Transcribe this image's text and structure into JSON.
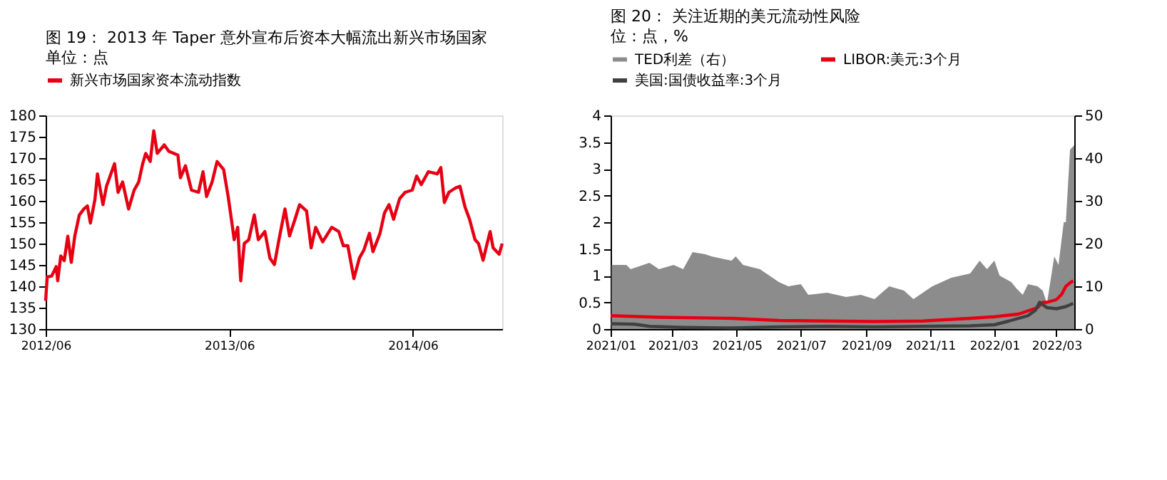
{
  "chart_data": [
    {
      "type": "line",
      "title": "图 19：  2013 年 Taper 意外宣布后资本大幅流出新兴市场国家",
      "subtitle": "单位：点",
      "legend": "top",
      "grid": false,
      "xlim": [
        "2012-06-01",
        "2014-11-26"
      ],
      "xticks": [
        {
          "value": "2012-06-01",
          "label": "2012/06"
        },
        {
          "value": "2013-06-01",
          "label": "2013/06"
        },
        {
          "value": "2014-06-01",
          "label": "2014/06"
        }
      ],
      "ylim": [
        130,
        180
      ],
      "yticks": [
        130,
        135,
        140,
        145,
        150,
        155,
        160,
        165,
        170,
        175,
        180
      ],
      "x": [
        "2012-06-01",
        "2012-06-04",
        "2012-06-13",
        "2012-06-22",
        "2012-06-25",
        "2012-07-01",
        "2012-07-08",
        "2012-07-15",
        "2012-07-22",
        "2012-07-29",
        "2012-08-07",
        "2012-08-16",
        "2012-08-23",
        "2012-08-29",
        "2012-09-07",
        "2012-09-12",
        "2012-09-23",
        "2012-09-30",
        "2012-10-16",
        "2012-10-23",
        "2012-11-01",
        "2012-11-13",
        "2012-11-24",
        "2012-12-03",
        "2012-12-11",
        "2012-12-17",
        "2012-12-26",
        "2013-01-02",
        "2013-01-09",
        "2013-01-23",
        "2013-02-01",
        "2013-02-19",
        "2013-02-24",
        "2013-03-06",
        "2013-03-18",
        "2013-04-01",
        "2013-04-10",
        "2013-04-17",
        "2013-04-28",
        "2013-05-08",
        "2013-05-21",
        "2013-05-30",
        "2013-06-06",
        "2013-06-11",
        "2013-06-18",
        "2013-06-24",
        "2013-07-01",
        "2013-07-10",
        "2013-07-21",
        "2013-07-29",
        "2013-08-11",
        "2013-08-21",
        "2013-08-30",
        "2013-09-08",
        "2013-09-20",
        "2013-09-29",
        "2013-10-10",
        "2013-10-19",
        "2013-11-02",
        "2013-11-11",
        "2013-11-20",
        "2013-12-04",
        "2013-12-22",
        "2014-01-05",
        "2014-01-14",
        "2014-01-23",
        "2014-02-04",
        "2014-02-15",
        "2014-02-24",
        "2014-03-07",
        "2014-03-14",
        "2014-03-28",
        "2014-04-06",
        "2014-04-15",
        "2014-04-24",
        "2014-05-06",
        "2014-05-17",
        "2014-05-31",
        "2014-06-09",
        "2014-06-18",
        "2014-07-02",
        "2014-07-20",
        "2014-07-27",
        "2014-08-03",
        "2014-08-12",
        "2014-08-25",
        "2014-09-03",
        "2014-09-13",
        "2014-09-22",
        "2014-10-03",
        "2014-10-10",
        "2014-10-19",
        "2014-10-26",
        "2014-11-02",
        "2014-11-08",
        "2014-11-20",
        "2014-11-26"
      ],
      "series": [
        {
          "name": "新兴市场国家资本流动指数",
          "color": "#e60012",
          "values": [
            136.6,
            142.2,
            142.4,
            144.6,
            141.3,
            147.1,
            146,
            151.7,
            145.6,
            151.8,
            156.7,
            158.1,
            158.8,
            154.8,
            160.3,
            166.3,
            159.1,
            163.4,
            168.7,
            162,
            164.4,
            158.1,
            162.5,
            164.4,
            168.7,
            171.1,
            169.2,
            176.4,
            171.1,
            173.1,
            171.6,
            170.7,
            165.4,
            168.2,
            162.5,
            162,
            166.8,
            161,
            164.4,
            169.2,
            167.3,
            161,
            155.2,
            150.9,
            153.8,
            141.3,
            150,
            150.9,
            156.7,
            150.9,
            152.8,
            146.6,
            145.1,
            150.9,
            158.1,
            151.8,
            155.7,
            159.1,
            157.6,
            149,
            153.8,
            150.4,
            153.8,
            152.8,
            149.5,
            149.5,
            141.8,
            146.6,
            148.5,
            152.4,
            148.1,
            152.4,
            157.2,
            159.1,
            155.7,
            160.5,
            162,
            162.5,
            165.8,
            163.8,
            166.8,
            166.3,
            167.8,
            159.6,
            162,
            163,
            163.4,
            158.6,
            155.7,
            150.9,
            150,
            146.1,
            149.5,
            152.8,
            149,
            147.5,
            150
          ]
        }
      ]
    },
    {
      "type": "line",
      "title": "图 20：  关注近期的美元流动性风险",
      "subtitle": "位：点，%",
      "legend": "top",
      "grid": false,
      "xlim": [
        "2021-01-01",
        "2022-03-18"
      ],
      "xticks": [
        {
          "value": "2021-01-01",
          "label": "2021/01"
        },
        {
          "value": "2021-03-01",
          "label": "2021/03"
        },
        {
          "value": "2021-05-01",
          "label": "2021/05"
        },
        {
          "value": "2021-07-01",
          "label": "2021/07"
        },
        {
          "value": "2021-09-01",
          "label": "2021/09"
        },
        {
          "value": "2021-11-01",
          "label": "2021/11"
        },
        {
          "value": "2022-01-01",
          "label": "2022/01"
        },
        {
          "value": "2022-03-01",
          "label": "2022/03"
        }
      ],
      "ylim": [
        0,
        4
      ],
      "yticks": [
        0,
        0.5,
        1,
        1.5,
        2,
        2.5,
        3,
        3.5,
        4
      ],
      "y2lim": [
        0,
        50
      ],
      "y2ticks": [
        0,
        10,
        20,
        30,
        40,
        50
      ],
      "series": [
        {
          "name": "TED利差（右）",
          "type": "area",
          "axis": "y2",
          "color": "#8c8c8c",
          "x": [
            "2021-01-02",
            "2021-01-16",
            "2021-01-20",
            "2021-02-07",
            "2021-02-16",
            "2021-03-02",
            "2021-03-11",
            "2021-03-20",
            "2021-04-01",
            "2021-04-07",
            "2021-04-26",
            "2021-04-30",
            "2021-05-07",
            "2021-05-23",
            "2021-06-10",
            "2021-06-19",
            "2021-07-01",
            "2021-07-08",
            "2021-07-26",
            "2021-08-13",
            "2021-08-27",
            "2021-09-09",
            "2021-09-23",
            "2021-10-07",
            "2021-10-16",
            "2021-11-03",
            "2021-11-21",
            "2021-12-09",
            "2021-12-18",
            "2021-12-25",
            "2022-01-01",
            "2022-01-06",
            "2022-01-17",
            "2022-01-22",
            "2022-01-28",
            "2022-02-02",
            "2022-02-11",
            "2022-02-16",
            "2022-02-20",
            "2022-02-27",
            "2022-03-03",
            "2022-03-08",
            "2022-03-10",
            "2022-03-14",
            "2022-03-18"
          ],
          "values": [
            15,
            15,
            14,
            15.5,
            14,
            15,
            14,
            18,
            17.5,
            17,
            16,
            17,
            15,
            14,
            11,
            10,
            10.5,
            8,
            8.5,
            7.5,
            8,
            7,
            10,
            9,
            7,
            10,
            12,
            13,
            16,
            14,
            16,
            12.5,
            11,
            9.5,
            8,
            10.5,
            10,
            9,
            6,
            17,
            15,
            25,
            25,
            42,
            43
          ]
        },
        {
          "name": "LIBOR:美元:3个月",
          "type": "line",
          "color": "#e60012",
          "x": [
            "2021-01-01",
            "2021-02-16",
            "2021-04-26",
            "2021-06-10",
            "2021-07-26",
            "2021-09-09",
            "2021-10-25",
            "2021-12-09",
            "2022-01-01",
            "2022-01-24",
            "2022-02-11",
            "2022-02-16",
            "2022-02-20",
            "2022-03-01",
            "2022-03-06",
            "2022-03-10",
            "2022-03-15",
            "2022-03-17"
          ],
          "values": [
            0.25,
            0.22,
            0.2,
            0.16,
            0.15,
            0.14,
            0.15,
            0.2,
            0.23,
            0.28,
            0.4,
            0.5,
            0.5,
            0.55,
            0.65,
            0.8,
            0.88,
            0.9
          ]
        },
        {
          "name": "美国:国债收益率:3个月",
          "type": "line",
          "color": "#404040",
          "x": [
            "2021-01-01",
            "2021-01-24",
            "2021-02-07",
            "2021-03-11",
            "2021-04-26",
            "2021-06-10",
            "2021-07-26",
            "2021-09-09",
            "2021-10-25",
            "2021-12-09",
            "2022-01-01",
            "2022-01-15",
            "2022-02-02",
            "2022-02-09",
            "2022-02-13",
            "2022-02-20",
            "2022-03-01",
            "2022-03-10",
            "2022-03-17"
          ],
          "values": [
            0.1,
            0.09,
            0.05,
            0.03,
            0.02,
            0.04,
            0.05,
            0.04,
            0.05,
            0.06,
            0.08,
            0.15,
            0.25,
            0.35,
            0.5,
            0.4,
            0.38,
            0.42,
            0.48
          ]
        }
      ]
    }
  ]
}
